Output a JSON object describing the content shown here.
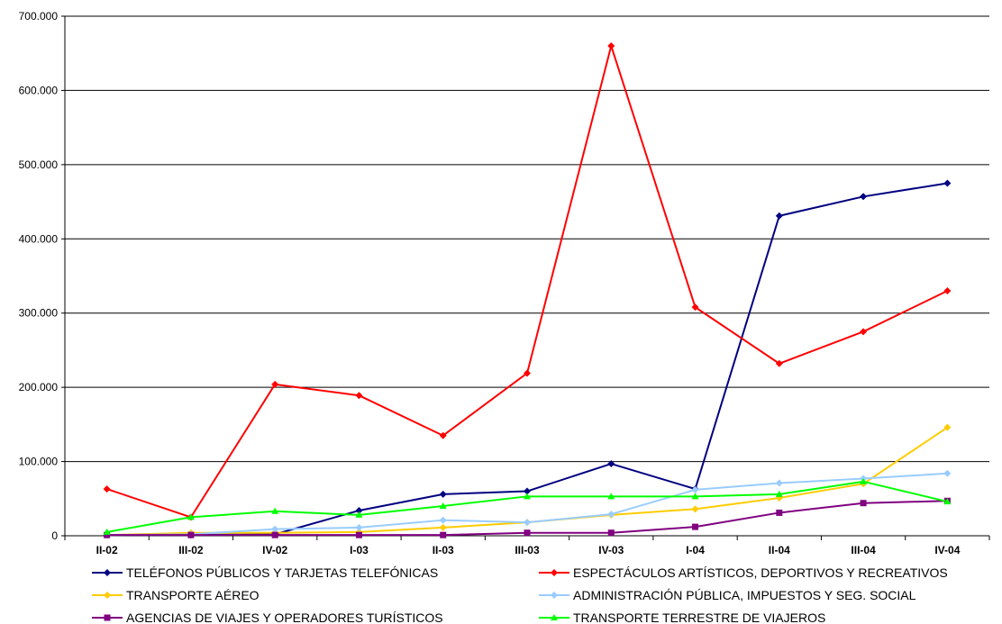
{
  "chart_data": {
    "type": "line",
    "categories": [
      "II-02",
      "III-02",
      "IV-02",
      "I-03",
      "II-03",
      "III-03",
      "IV-03",
      "I-04",
      "II-04",
      "III-04",
      "IV-04"
    ],
    "ylim": [
      0,
      700000
    ],
    "yticks": [
      0,
      100000,
      200000,
      300000,
      400000,
      500000,
      600000,
      700000
    ],
    "ytick_labels": [
      "0",
      "100.000",
      "200.000",
      "300.000",
      "400.000",
      "500.000",
      "600.000",
      "700.000"
    ],
    "grid": true,
    "legend_position": "bottom",
    "series": [
      {
        "name": "TELÉFONOS PÚBLICOS Y TARJETAS TELEFÓNICAS",
        "color": "#000080",
        "marker": "diamond",
        "values": [
          1000,
          1000,
          2000,
          34000,
          56000,
          60000,
          97000,
          63000,
          431000,
          457000,
          475000
        ]
      },
      {
        "name": "ESPECTÁCULOS ARTÍSTICOS, DEPORTIVOS Y RECREATIVOS",
        "color": "#ff0000",
        "marker": "diamond",
        "values": [
          63000,
          25000,
          204000,
          189000,
          135000,
          219000,
          660000,
          308000,
          232000,
          275000,
          330000
        ]
      },
      {
        "name": "TRANSPORTE AÉREO",
        "color": "#ffcc00",
        "marker": "diamond",
        "values": [
          1000,
          4000,
          4000,
          5000,
          11000,
          18000,
          28000,
          36000,
          51000,
          70000,
          146000
        ]
      },
      {
        "name": "ADMINISTRACIÓN PÚBLICA, IMPUESTOS Y SEG. SOCIAL",
        "color": "#99ccff",
        "marker": "diamond",
        "values": [
          1000,
          2000,
          9000,
          11000,
          21000,
          18000,
          29000,
          62000,
          71000,
          77000,
          84000
        ]
      },
      {
        "name": "AGENCIAS DE VIAJES Y OPERADORES TURÍSTICOS",
        "color": "#800080",
        "marker": "square",
        "values": [
          1000,
          1000,
          1000,
          1000,
          1000,
          4000,
          4000,
          12000,
          31000,
          44000,
          47000
        ]
      },
      {
        "name": "TRANSPORTE TERRESTRE DE VIAJEROS",
        "color": "#00ff00",
        "marker": "triangle",
        "values": [
          5000,
          25000,
          33000,
          28000,
          40000,
          53000,
          53000,
          53000,
          56000,
          73000,
          46000
        ]
      }
    ]
  }
}
